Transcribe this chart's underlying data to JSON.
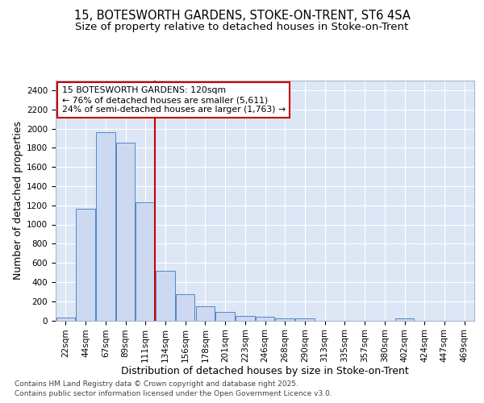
{
  "title_line1": "15, BOTESWORTH GARDENS, STOKE-ON-TRENT, ST6 4SA",
  "title_line2": "Size of property relative to detached houses in Stoke-on-Trent",
  "xlabel": "Distribution of detached houses by size in Stoke-on-Trent",
  "ylabel": "Number of detached properties",
  "categories": [
    "22sqm",
    "44sqm",
    "67sqm",
    "89sqm",
    "111sqm",
    "134sqm",
    "156sqm",
    "178sqm",
    "201sqm",
    "223sqm",
    "246sqm",
    "268sqm",
    "290sqm",
    "313sqm",
    "335sqm",
    "357sqm",
    "380sqm",
    "402sqm",
    "424sqm",
    "447sqm",
    "469sqm"
  ],
  "values": [
    30,
    1160,
    1960,
    1850,
    1230,
    520,
    270,
    150,
    90,
    48,
    42,
    20,
    18,
    0,
    0,
    0,
    0,
    18,
    0,
    0,
    0
  ],
  "bar_color": "#ccd9f0",
  "bar_edge_color": "#5585c8",
  "vline_index": 4,
  "vline_color": "#cc0000",
  "annotation_text": "15 BOTESWORTH GARDENS: 120sqm\n← 76% of detached houses are smaller (5,611)\n24% of semi-detached houses are larger (1,763) →",
  "annotation_box_edge_color": "#cc0000",
  "ylim": [
    0,
    2500
  ],
  "yticks": [
    0,
    200,
    400,
    600,
    800,
    1000,
    1200,
    1400,
    1600,
    1800,
    2000,
    2200,
    2400
  ],
  "plot_bg_color": "#dce6f5",
  "grid_color": "#ffffff",
  "fig_bg_color": "#ffffff",
  "footer_line1": "Contains HM Land Registry data © Crown copyright and database right 2025.",
  "footer_line2": "Contains public sector information licensed under the Open Government Licence v3.0.",
  "title_fontsize": 10.5,
  "subtitle_fontsize": 9.5,
  "axis_label_fontsize": 9,
  "tick_fontsize": 7.5,
  "annotation_fontsize": 7.8,
  "footer_fontsize": 6.5
}
